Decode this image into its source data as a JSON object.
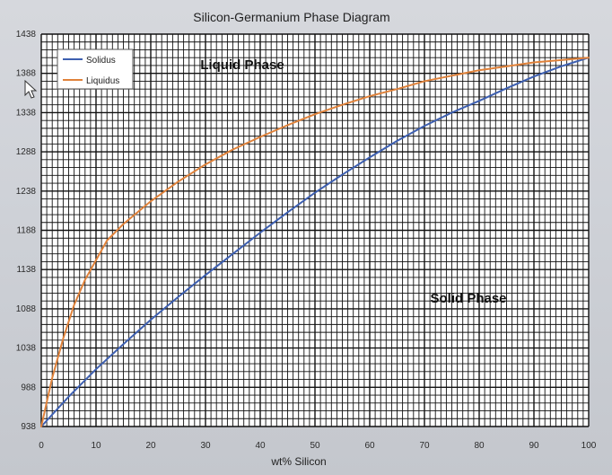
{
  "chart_data": {
    "type": "line",
    "title": "Silicon-Germanium Phase Diagram",
    "xlabel": "wt% Silicon",
    "ylabel": "",
    "xlim": [
      0,
      100
    ],
    "ylim": [
      938,
      1438
    ],
    "xticks": [
      0,
      10,
      20,
      30,
      40,
      50,
      60,
      70,
      80,
      90,
      100
    ],
    "yticks": [
      938,
      988,
      1038,
      1088,
      1138,
      1188,
      1238,
      1288,
      1338,
      1388,
      1438
    ],
    "grid": true,
    "legend_position": "top-left",
    "series": [
      {
        "name": "Solidus",
        "color": "#3d5fb0",
        "x": [
          0,
          5,
          10,
          15,
          20,
          25,
          30,
          35,
          40,
          45,
          50,
          55,
          60,
          65,
          70,
          75,
          80,
          85,
          90,
          95,
          100
        ],
        "y": [
          938,
          976,
          1011,
          1043,
          1074,
          1103,
          1131,
          1158,
          1185,
          1211,
          1236,
          1259,
          1281,
          1302,
          1321,
          1338,
          1353,
          1369,
          1384,
          1397,
          1408
        ]
      },
      {
        "name": "Liquidus",
        "color": "#e0823a",
        "x": [
          0,
          2,
          4,
          6,
          8,
          10,
          12,
          15,
          20,
          25,
          30,
          35,
          40,
          45,
          50,
          55,
          60,
          65,
          70,
          75,
          80,
          85,
          90,
          95,
          100
        ],
        "y": [
          938,
          1000,
          1050,
          1093,
          1125,
          1150,
          1175,
          1196,
          1225,
          1250,
          1272,
          1291,
          1307,
          1322,
          1336,
          1348,
          1359,
          1368,
          1378,
          1385,
          1392,
          1397,
          1402,
          1405,
          1408
        ]
      }
    ],
    "annotations": {
      "liquid": "Liquid Phase",
      "solid": "Solid Phase"
    }
  }
}
